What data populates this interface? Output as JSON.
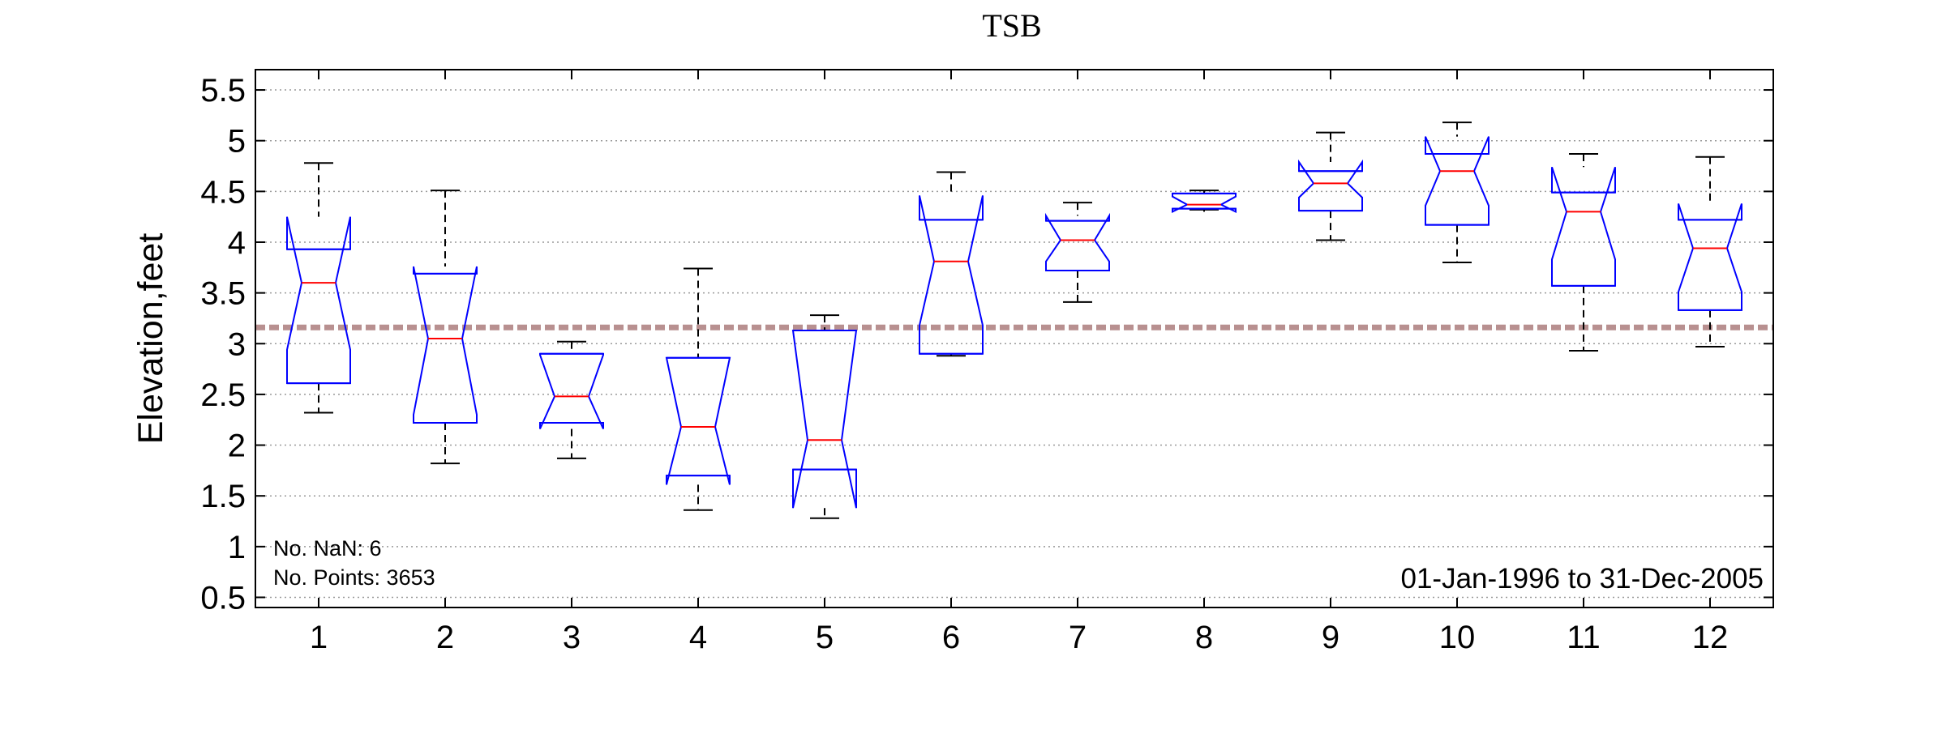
{
  "chart_data": {
    "type": "boxplot",
    "title": "TSB",
    "xlabel": "",
    "ylabel": "Elevation,feet",
    "ylim": [
      0.4,
      5.7
    ],
    "yticks": [
      0.5,
      1,
      1.5,
      2,
      2.5,
      3,
      3.5,
      4,
      4.5,
      5,
      5.5
    ],
    "ytick_labels": [
      "0.5",
      "1",
      "1.5",
      "2",
      "2.5",
      "3",
      "3.5",
      "4",
      "4.5",
      "5",
      "5.5"
    ],
    "grid": "horizontal dotted",
    "notched": true,
    "reference_line": {
      "value": 3.16,
      "style": "dashed",
      "color": "#b89090"
    },
    "colors": {
      "box": "#0000ff",
      "median": "#ff0000",
      "whisker": "#000000",
      "grid": "#999999"
    },
    "categories": [
      "1",
      "2",
      "3",
      "4",
      "5",
      "6",
      "7",
      "8",
      "9",
      "10",
      "11",
      "12"
    ],
    "boxes": [
      {
        "month": "1",
        "whisker_low": 2.32,
        "q1": 2.61,
        "median": 3.6,
        "q3": 3.93,
        "whisker_high": 4.78,
        "notch_low": 2.94,
        "notch_high": 4.25
      },
      {
        "month": "2",
        "whisker_low": 1.82,
        "q1": 2.22,
        "median": 3.05,
        "q3": 3.69,
        "whisker_high": 4.51,
        "notch_low": 2.3,
        "notch_high": 3.76
      },
      {
        "month": "3",
        "whisker_low": 1.87,
        "q1": 2.22,
        "median": 2.48,
        "q3": 2.9,
        "whisker_high": 3.02,
        "notch_low": 2.16,
        "notch_high": 2.89
      },
      {
        "month": "4",
        "whisker_low": 1.36,
        "q1": 1.7,
        "median": 2.18,
        "q3": 2.86,
        "whisker_high": 3.74,
        "notch_low": 1.61,
        "notch_high": 2.86
      },
      {
        "month": "5",
        "whisker_low": 1.28,
        "q1": 1.76,
        "median": 2.05,
        "q3": 3.13,
        "whisker_high": 3.28,
        "notch_low": 1.38,
        "notch_high": 3.13
      },
      {
        "month": "6",
        "whisker_low": 2.88,
        "q1": 2.9,
        "median": 3.81,
        "q3": 4.22,
        "whisker_high": 4.69,
        "notch_low": 3.18,
        "notch_high": 4.46
      },
      {
        "month": "7",
        "whisker_low": 3.41,
        "q1": 3.72,
        "median": 4.02,
        "q3": 4.21,
        "whisker_high": 4.39,
        "notch_low": 3.81,
        "notch_high": 4.26
      },
      {
        "month": "8",
        "whisker_low": 4.32,
        "q1": 4.33,
        "median": 4.37,
        "q3": 4.48,
        "whisker_high": 4.51,
        "notch_low": 4.3,
        "notch_high": 4.45
      },
      {
        "month": "9",
        "whisker_low": 4.02,
        "q1": 4.31,
        "median": 4.58,
        "q3": 4.7,
        "whisker_high": 5.08,
        "notch_low": 4.44,
        "notch_high": 4.79
      },
      {
        "month": "10",
        "whisker_low": 3.8,
        "q1": 4.17,
        "median": 4.7,
        "q3": 4.87,
        "whisker_high": 5.18,
        "notch_low": 4.36,
        "notch_high": 5.04
      },
      {
        "month": "11",
        "whisker_low": 2.93,
        "q1": 3.57,
        "median": 4.3,
        "q3": 4.49,
        "whisker_high": 4.87,
        "notch_low": 3.83,
        "notch_high": 4.74
      },
      {
        "month": "12",
        "whisker_low": 2.97,
        "q1": 3.33,
        "median": 3.94,
        "q3": 4.22,
        "whisker_high": 4.84,
        "notch_low": 3.51,
        "notch_high": 4.38
      }
    ],
    "annotations": {
      "nan_count": "No. NaN: 6",
      "points_count": "No. Points: 3653",
      "date_range": "01-Jan-1996 to 31-Dec-2005"
    }
  }
}
